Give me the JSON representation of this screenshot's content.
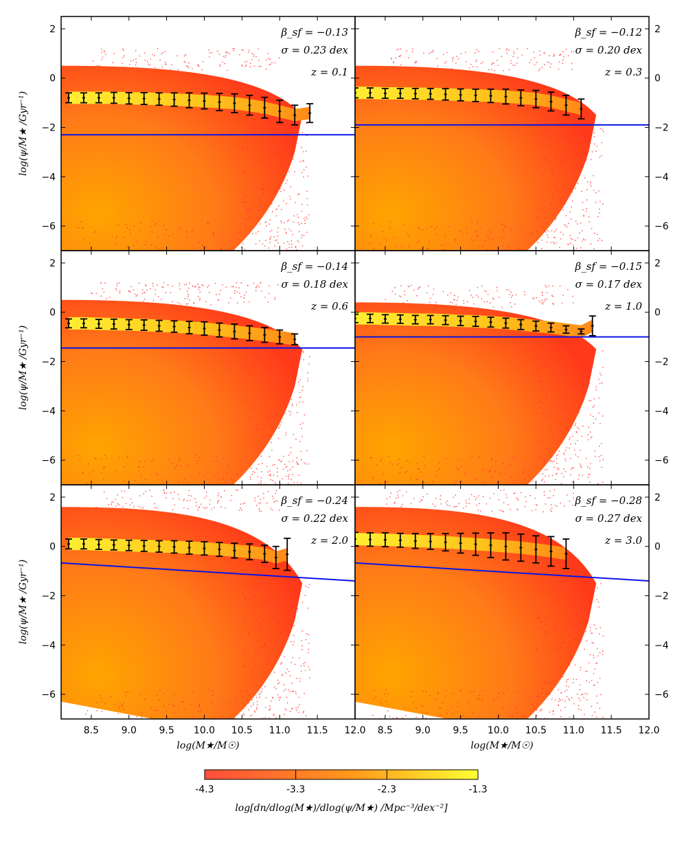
{
  "chart_data": [
    {
      "type": "scatter",
      "panel": "z=0.1",
      "beta_label": "β_sf = −0.13",
      "sigma_label": "σ = 0.23 dex",
      "z_label": "z = 0.1",
      "beta": -0.13,
      "sigma": 0.23,
      "z": 0.1,
      "line": [
        [
          8.1,
          -2.3
        ],
        [
          12.0,
          -2.3
        ]
      ],
      "median": {
        "x": [
          8.2,
          8.4,
          8.6,
          8.8,
          9.0,
          9.2,
          9.4,
          9.6,
          9.8,
          10.0,
          10.2,
          10.4,
          10.6,
          10.8,
          11.0,
          11.2,
          11.4
        ],
        "y": [
          -0.8,
          -0.8,
          -0.8,
          -0.8,
          -0.82,
          -0.83,
          -0.85,
          -0.87,
          -0.9,
          -0.93,
          -0.97,
          -1.02,
          -1.1,
          -1.2,
          -1.35,
          -1.5,
          -1.42
        ],
        "err": [
          0.2,
          0.2,
          0.2,
          0.22,
          0.23,
          0.24,
          0.25,
          0.27,
          0.3,
          0.32,
          0.35,
          0.38,
          0.4,
          0.42,
          0.45,
          0.4,
          0.38
        ]
      }
    },
    {
      "type": "scatter",
      "panel": "z=0.3",
      "beta_label": "β_sf = −0.12",
      "sigma_label": "σ = 0.20 dex",
      "z_label": "z = 0.3",
      "beta": -0.12,
      "sigma": 0.2,
      "z": 0.3,
      "line": [
        [
          8.0,
          -1.9
        ],
        [
          12.0,
          -1.9
        ]
      ],
      "median": {
        "x": [
          8.1,
          8.3,
          8.5,
          8.7,
          8.9,
          9.1,
          9.3,
          9.5,
          9.7,
          9.9,
          10.1,
          10.3,
          10.5,
          10.7,
          10.9,
          11.1
        ],
        "y": [
          -0.6,
          -0.6,
          -0.62,
          -0.62,
          -0.63,
          -0.64,
          -0.66,
          -0.68,
          -0.7,
          -0.72,
          -0.75,
          -0.8,
          -0.85,
          -0.95,
          -1.1,
          -1.25
        ],
        "err": [
          0.2,
          0.2,
          0.2,
          0.2,
          0.21,
          0.22,
          0.23,
          0.24,
          0.25,
          0.27,
          0.3,
          0.32,
          0.35,
          0.38,
          0.4,
          0.4
        ]
      }
    },
    {
      "type": "scatter",
      "panel": "z=0.6",
      "beta_label": "β_sf = −0.14",
      "sigma_label": "σ = 0.18 dex",
      "z_label": "z = 0.6",
      "beta": -0.14,
      "sigma": 0.18,
      "z": 0.6,
      "line": [
        [
          8.1,
          -1.45
        ],
        [
          12.0,
          -1.45
        ]
      ],
      "median": {
        "x": [
          8.2,
          8.4,
          8.6,
          8.8,
          9.0,
          9.2,
          9.4,
          9.6,
          9.8,
          10.0,
          10.2,
          10.4,
          10.6,
          10.8,
          11.0,
          11.2
        ],
        "y": [
          -0.45,
          -0.45,
          -0.47,
          -0.48,
          -0.5,
          -0.52,
          -0.55,
          -0.58,
          -0.62,
          -0.66,
          -0.72,
          -0.78,
          -0.85,
          -0.92,
          -1.0,
          -1.1
        ],
        "err": [
          0.18,
          0.18,
          0.18,
          0.2,
          0.2,
          0.21,
          0.22,
          0.23,
          0.25,
          0.27,
          0.28,
          0.3,
          0.3,
          0.3,
          0.28,
          0.22
        ]
      }
    },
    {
      "type": "scatter",
      "panel": "z=1.0",
      "beta_label": "β_sf = −0.15",
      "sigma_label": "σ = 0.17 dex",
      "z_label": "z = 1.0",
      "beta": -0.15,
      "sigma": 0.17,
      "z": 1.0,
      "line": [
        [
          8.0,
          -1.0
        ],
        [
          12.0,
          -1.0
        ]
      ],
      "median": {
        "x": [
          8.1,
          8.3,
          8.5,
          8.7,
          8.9,
          9.1,
          9.3,
          9.5,
          9.7,
          9.9,
          10.1,
          10.3,
          10.5,
          10.7,
          10.9,
          11.1,
          11.25
        ],
        "y": [
          -0.25,
          -0.25,
          -0.27,
          -0.28,
          -0.3,
          -0.3,
          -0.32,
          -0.35,
          -0.37,
          -0.4,
          -0.44,
          -0.5,
          -0.56,
          -0.62,
          -0.7,
          -0.78,
          -0.55
        ],
        "err": [
          0.17,
          0.17,
          0.17,
          0.17,
          0.17,
          0.17,
          0.18,
          0.19,
          0.2,
          0.2,
          0.2,
          0.2,
          0.2,
          0.18,
          0.15,
          0.1,
          0.4
        ]
      }
    },
    {
      "type": "scatter",
      "panel": "z=2.0",
      "beta_label": "β_sf = −0.24",
      "sigma_label": "σ = 0.22 dex",
      "z_label": "z = 2.0",
      "beta": -0.24,
      "sigma": 0.22,
      "z": 2.0,
      "line": [
        [
          8.0,
          -0.65
        ],
        [
          12.0,
          -1.4
        ]
      ],
      "median": {
        "x": [
          8.2,
          8.4,
          8.6,
          8.8,
          9.0,
          9.2,
          9.4,
          9.6,
          9.8,
          10.0,
          10.2,
          10.4,
          10.6,
          10.8,
          10.95,
          11.1
        ],
        "y": [
          0.1,
          0.1,
          0.08,
          0.06,
          0.04,
          0.02,
          0.0,
          -0.02,
          -0.05,
          -0.08,
          -0.12,
          -0.17,
          -0.22,
          -0.3,
          -0.45,
          -0.32
        ],
        "err": [
          0.2,
          0.2,
          0.2,
          0.2,
          0.21,
          0.22,
          0.23,
          0.25,
          0.26,
          0.27,
          0.28,
          0.3,
          0.32,
          0.35,
          0.45,
          0.65
        ]
      }
    },
    {
      "type": "scatter",
      "panel": "z=3.0",
      "beta_label": "β_sf = −0.28",
      "sigma_label": "σ = 0.27 dex",
      "z_label": "z = 3.0",
      "beta": -0.28,
      "sigma": 0.27,
      "z": 3.0,
      "line": [
        [
          8.0,
          -0.65
        ],
        [
          12.0,
          -1.4
        ]
      ],
      "median": {
        "x": [
          8.1,
          8.3,
          8.5,
          8.7,
          8.9,
          9.1,
          9.3,
          9.5,
          9.7,
          9.9,
          10.1,
          10.3,
          10.5,
          10.7,
          10.9
        ],
        "y": [
          0.3,
          0.28,
          0.27,
          0.25,
          0.22,
          0.2,
          0.17,
          0.13,
          0.09,
          0.05,
          0.0,
          -0.05,
          -0.12,
          -0.2,
          -0.3
        ],
        "err": [
          0.27,
          0.27,
          0.28,
          0.28,
          0.3,
          0.32,
          0.35,
          0.4,
          0.45,
          0.5,
          0.55,
          0.55,
          0.55,
          0.6,
          0.6
        ]
      }
    }
  ],
  "axes": {
    "xlim": [
      8.1,
      12.0
    ],
    "ylim": [
      -7.0,
      2.5
    ],
    "xticks": [
      "8.5",
      "9.0",
      "9.5",
      "10.0",
      "10.5",
      "11.0",
      "11.5",
      "12.0"
    ],
    "xtick_values": [
      8.5,
      9.0,
      9.5,
      10.0,
      10.5,
      11.0,
      11.5,
      12.0
    ],
    "yticks": [
      "2",
      "0",
      "−2",
      "−4",
      "−6"
    ],
    "ytick_values": [
      2,
      0,
      -2,
      -4,
      -6
    ],
    "xlabel": "log(M★/M☉)",
    "ylabel": "log(ψ/M★ /Gyr⁻¹)"
  },
  "colorbar": {
    "ticks": [
      "-4.3",
      "-3.3",
      "-2.3",
      "-1.3"
    ],
    "tick_values": [
      -4.3,
      -3.3,
      -2.3,
      -1.3
    ],
    "range": [
      -4.3,
      -1.3
    ],
    "label": "log[dn/dlog(M★)/dlog(ψ/M★) /Mpc⁻³/dex⁻²]",
    "color_low": "#ff4d3a",
    "color_mid": "#ff9a1a",
    "color_high": "#ffff33"
  },
  "colors": {
    "line": "#0a14e6",
    "errorbar": "#000000",
    "scatter": "#ff3030",
    "density_core": "#ffa500",
    "density_edge": "#ff3a1a"
  }
}
